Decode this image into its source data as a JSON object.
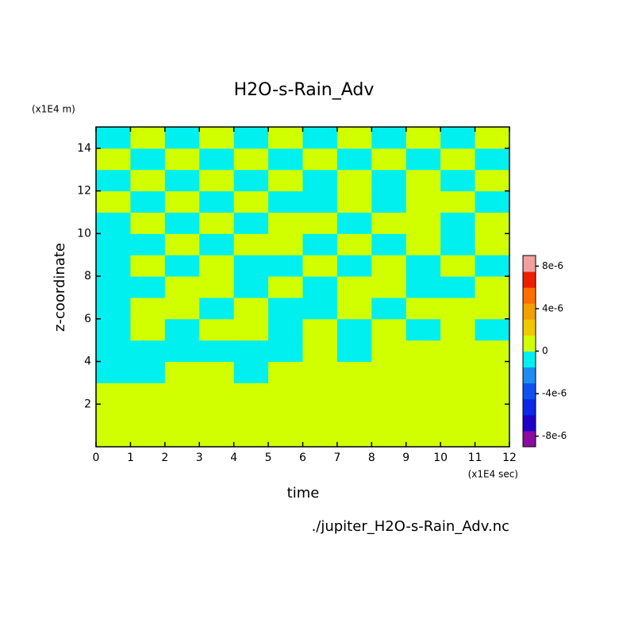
{
  "chart_data": {
    "type": "heatmap",
    "title": "H2O-s-Rain_Adv",
    "x_label": "time",
    "x_unit": "(x1E4 sec)",
    "y_label": "z-coordinate",
    "y_unit": "(x1E4 m)",
    "source": "./jupiter_H2O-s-Rain_Adv.nc",
    "xlim": [
      0,
      12
    ],
    "xticks": [
      0,
      1,
      2,
      3,
      4,
      5,
      6,
      7,
      8,
      9,
      10,
      11,
      12
    ],
    "ylim": [
      0,
      15
    ],
    "yticks": [
      2,
      4,
      6,
      8,
      10,
      12,
      14
    ],
    "x": [
      0.5,
      1.5,
      2.5,
      3.5,
      4.5,
      5.5,
      6.5,
      7.5,
      8.5,
      9.5,
      10.5,
      11.5
    ],
    "y": [
      0.5,
      1.5,
      2.5,
      3.5,
      4.5,
      5.5,
      6.5,
      7.5,
      8.5,
      9.5,
      10.5,
      11.5,
      12.5,
      13.5,
      14.5
    ],
    "z": [
      [
        5e-07,
        5e-07,
        5e-07,
        5e-07,
        5e-07,
        5e-07,
        5e-07,
        5e-07,
        5e-07,
        5e-07,
        5e-07,
        5e-07
      ],
      [
        5e-07,
        5e-07,
        5e-07,
        5e-07,
        5e-07,
        5e-07,
        5e-07,
        5e-07,
        5e-07,
        5e-07,
        5e-07,
        5e-07
      ],
      [
        5e-07,
        5e-07,
        5e-07,
        5e-07,
        5e-07,
        5e-07,
        5e-07,
        5e-07,
        5e-07,
        5e-07,
        5e-07,
        5e-07
      ],
      [
        -5e-07,
        -5e-07,
        5e-07,
        5e-07,
        -5e-07,
        5e-07,
        5e-07,
        5e-07,
        5e-07,
        5e-07,
        5e-07,
        5e-07
      ],
      [
        -5e-07,
        -5e-07,
        -5e-07,
        -5e-07,
        -5e-07,
        -5e-07,
        5e-07,
        -5e-07,
        5e-07,
        5e-07,
        5e-07,
        5e-07
      ],
      [
        -5e-07,
        5e-07,
        -5e-07,
        5e-07,
        5e-07,
        -5e-07,
        5e-07,
        -5e-07,
        5e-07,
        -5e-07,
        5e-07,
        -5e-07
      ],
      [
        -5e-07,
        5e-07,
        5e-07,
        -5e-07,
        5e-07,
        -5e-07,
        -5e-07,
        5e-07,
        -5e-07,
        5e-07,
        5e-07,
        5e-07
      ],
      [
        -5e-07,
        -5e-07,
        5e-07,
        5e-07,
        -5e-07,
        5e-07,
        -5e-07,
        5e-07,
        5e-07,
        -5e-07,
        -5e-07,
        5e-07
      ],
      [
        -5e-07,
        5e-07,
        -5e-07,
        5e-07,
        -5e-07,
        -5e-07,
        5e-07,
        -5e-07,
        5e-07,
        -5e-07,
        5e-07,
        -5e-07
      ],
      [
        -5e-07,
        -5e-07,
        5e-07,
        -5e-07,
        5e-07,
        5e-07,
        -5e-07,
        5e-07,
        -5e-07,
        5e-07,
        -5e-07,
        5e-07
      ],
      [
        -5e-07,
        5e-07,
        -5e-07,
        5e-07,
        -5e-07,
        5e-07,
        5e-07,
        -5e-07,
        5e-07,
        5e-07,
        -5e-07,
        5e-07
      ],
      [
        5e-07,
        -5e-07,
        5e-07,
        -5e-07,
        5e-07,
        -5e-07,
        -5e-07,
        5e-07,
        -5e-07,
        5e-07,
        5e-07,
        -5e-07
      ],
      [
        -5e-07,
        5e-07,
        -5e-07,
        5e-07,
        -5e-07,
        5e-07,
        -5e-07,
        5e-07,
        -5e-07,
        5e-07,
        -5e-07,
        5e-07
      ],
      [
        5e-07,
        -5e-07,
        5e-07,
        -5e-07,
        5e-07,
        -5e-07,
        5e-07,
        -5e-07,
        5e-07,
        -5e-07,
        5e-07,
        -5e-07
      ],
      [
        -5e-07,
        5e-07,
        -5e-07,
        5e-07,
        -5e-07,
        5e-07,
        -5e-07,
        5e-07,
        -5e-07,
        5e-07,
        -5e-07,
        5e-07
      ]
    ],
    "colorbar": {
      "lim": [
        -9e-06,
        9e-06
      ],
      "colors": [
        "#8c0ca0",
        "#1e00c8",
        "#0a28e6",
        "#1050f0",
        "#1e8cf0",
        "#00f0f0",
        "#d2ff00",
        "#f0c800",
        "#f0a000",
        "#ff6e00",
        "#f01e00",
        "#f0a0a0"
      ],
      "ticks": [
        {
          "value": -8e-06,
          "label": "-8e-6"
        },
        {
          "value": -4e-06,
          "label": "-4e-6"
        },
        0,
        {
          "value": 4e-06,
          "label": "4e-6"
        },
        {
          "value": 8e-06,
          "label": "8e-6"
        }
      ]
    }
  }
}
